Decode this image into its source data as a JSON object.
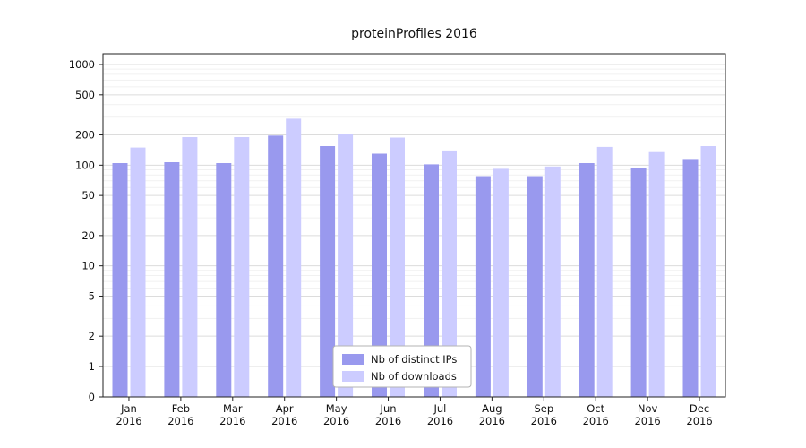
{
  "title": "proteinProfiles 2016",
  "colors": {
    "distinct_ips": "#9999ee",
    "downloads": "#ccccff",
    "grid_major": "#dcdcdc",
    "grid_minor": "#f1f1f1",
    "axis": "#222222",
    "legend_border": "#b3b3b3"
  },
  "chart_data": {
    "type": "bar",
    "title": "proteinProfiles 2016",
    "xlabel": "",
    "ylabel": "",
    "yscale": "symlog",
    "grid": true,
    "legend_position": "lower center",
    "ylim": [
      0,
      1000
    ],
    "yticks": [
      0,
      1,
      2,
      5,
      10,
      20,
      50,
      100,
      200,
      500,
      1000
    ],
    "minor_ticks": [
      3,
      4,
      6,
      7,
      8,
      9,
      30,
      40,
      60,
      70,
      80,
      90,
      300,
      400,
      600,
      700,
      800,
      900
    ],
    "categories": [
      "Jan 2016",
      "Feb 2016",
      "Mar 2016",
      "Apr 2016",
      "May 2016",
      "Jun 2016",
      "Jul 2016",
      "Aug 2016",
      "Sep 2016",
      "Oct 2016",
      "Nov 2016",
      "Dec 2016"
    ],
    "series": [
      {
        "name": "Nb of distinct IPs",
        "color": "#9999ee",
        "values": [
          105,
          107,
          105,
          197,
          155,
          130,
          102,
          78,
          78,
          105,
          93,
          113
        ]
      },
      {
        "name": "Nb of downloads",
        "color": "#ccccff",
        "values": [
          150,
          190,
          190,
          290,
          205,
          188,
          140,
          92,
          97,
          152,
          135,
          155
        ]
      }
    ]
  }
}
